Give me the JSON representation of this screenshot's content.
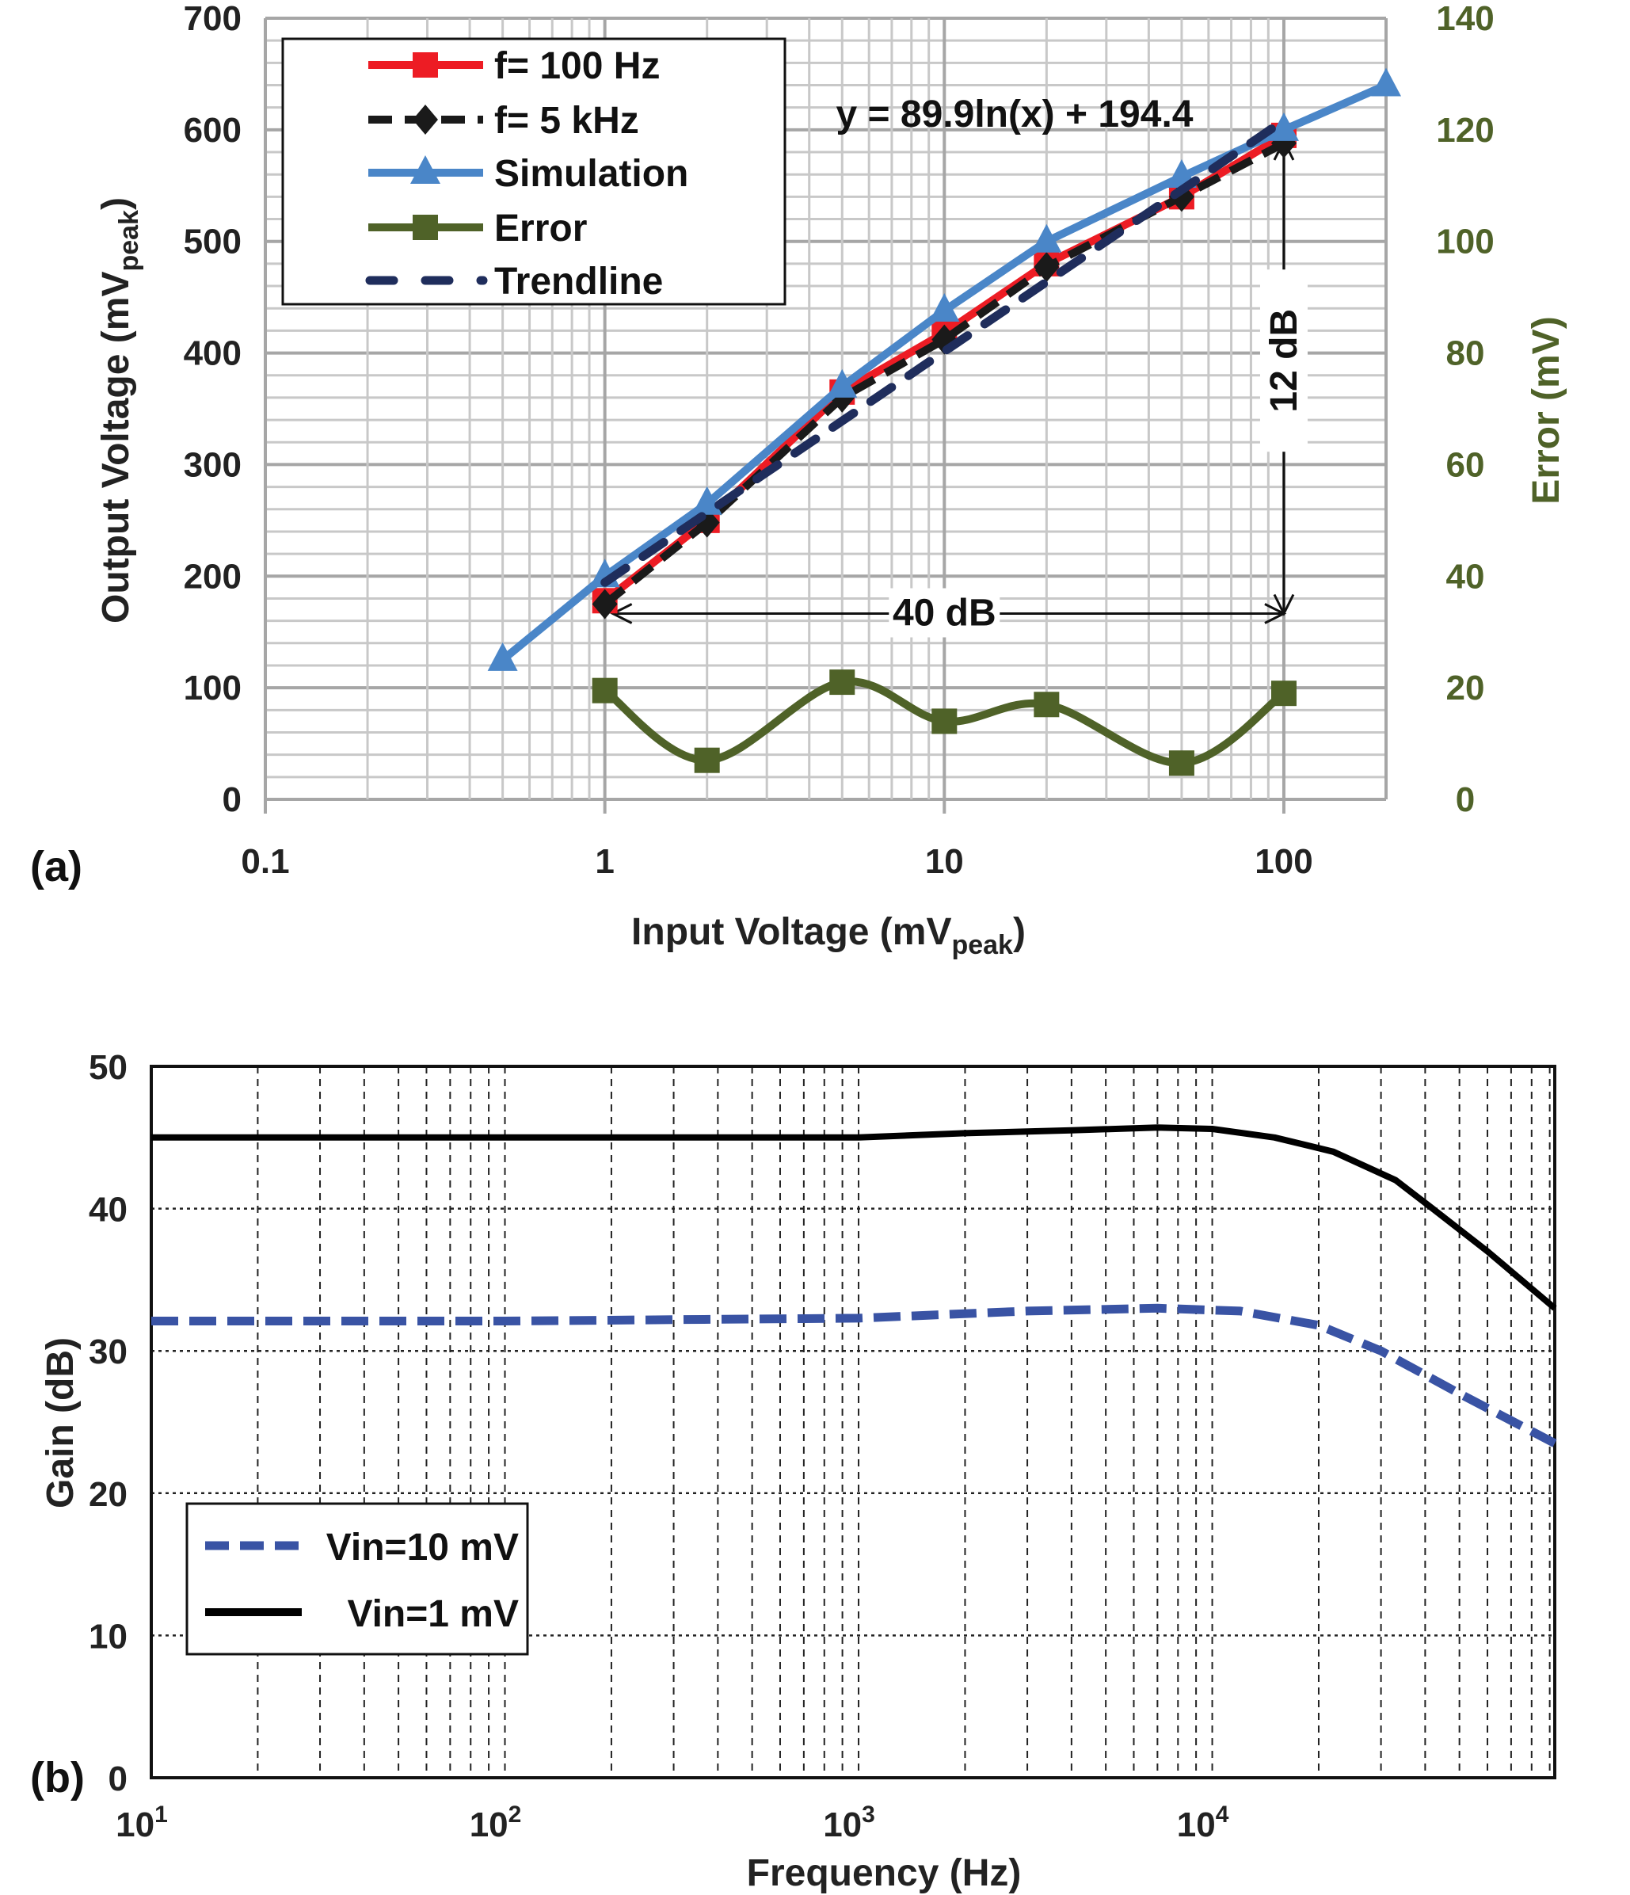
{
  "panel_labels": {
    "a": "(a)",
    "b": "(b)"
  },
  "chart_data": [
    {
      "type": "line",
      "panel": "(a)",
      "xlabel": {
        "main": "Input Voltage (mV",
        "sub": "peak",
        "end": ")"
      },
      "ylabel": {
        "main": "Output Voltage (mV",
        "sub": "peak",
        "end": ")"
      },
      "y2label": "Error (mV)",
      "xscale": "log",
      "xlim": [
        0.1,
        200
      ],
      "ylim": [
        0,
        700
      ],
      "y2lim": [
        0,
        140
      ],
      "xticks": [
        "0.1",
        "1",
        "10",
        "100"
      ],
      "yticks": [
        "0",
        "100",
        "200",
        "300",
        "400",
        "500",
        "600",
        "700"
      ],
      "y2ticks": [
        "0",
        "20",
        "40",
        "60",
        "80",
        "100",
        "120",
        "140"
      ],
      "grid": true,
      "legend_position": "top-left",
      "series": [
        {
          "name": "f= 100 Hz",
          "color": "#ed1c24",
          "marker": "square",
          "axis": "left",
          "x": [
            1,
            2,
            5,
            10,
            20,
            50,
            100
          ],
          "y": [
            178,
            250,
            365,
            418,
            480,
            540,
            595
          ]
        },
        {
          "name": "f= 5 kHz",
          "color": "#1a1a1a",
          "marker": "diamond",
          "dash": "dashed",
          "axis": "left",
          "x": [
            1,
            2,
            5,
            10,
            20,
            50,
            100
          ],
          "y": [
            175,
            248,
            360,
            412,
            477,
            540,
            588
          ]
        },
        {
          "name": "Simulation",
          "color": "#4a86c8",
          "marker": "triangle",
          "axis": "left",
          "x": [
            0.5,
            1,
            2,
            5,
            10,
            20,
            50,
            100,
            200
          ],
          "y": [
            125,
            200,
            265,
            370,
            438,
            500,
            558,
            600,
            640
          ]
        },
        {
          "name": "Error",
          "color": "#4f6228",
          "marker": "square",
          "axis": "right",
          "smooth": true,
          "x": [
            1,
            2,
            5,
            10,
            20,
            50,
            100
          ],
          "y": [
            19.5,
            7,
            21,
            14,
            17,
            6.5,
            19
          ]
        },
        {
          "name": "Trendline",
          "color": "#1f2d5c",
          "dash": "long-dash",
          "axis": "left",
          "formula": {
            "a": 89.9,
            "b": 194.4
          },
          "x_range": [
            1,
            100
          ]
        }
      ],
      "annotations": {
        "equation": "y = 89.9ln(x) + 194.4",
        "horizontal_arrow": {
          "label": "40 dB",
          "x_from": 1,
          "x_to": 100,
          "y": 175
        },
        "vertical_arrow": {
          "label": "12 dB",
          "x": 100,
          "y_from": 175,
          "y_to": 590
        }
      }
    },
    {
      "type": "line",
      "panel": "(b)",
      "xlabel": "Frequency (Hz)",
      "ylabel": "Gain (dB)",
      "xscale": "log",
      "xlim": [
        10,
        93000
      ],
      "ylim": [
        0,
        50
      ],
      "xticks": [
        {
          "base": "10",
          "exp": "1"
        },
        {
          "base": "10",
          "exp": "2"
        },
        {
          "base": "10",
          "exp": "3"
        },
        {
          "base": "10",
          "exp": "4"
        }
      ],
      "yticks": [
        "0",
        "10",
        "20",
        "30",
        "40",
        "50"
      ],
      "grid": true,
      "legend_position": "bottom-left",
      "series": [
        {
          "name": "Vin=10 mV",
          "color": "#3953a4",
          "dash": "dashed",
          "x": [
            10,
            100,
            1000,
            3000,
            7000,
            12000,
            20000,
            30000,
            50000,
            93000
          ],
          "y": [
            32.1,
            32.1,
            32.3,
            32.8,
            33.0,
            32.8,
            31.8,
            30.0,
            27.0,
            23.5
          ]
        },
        {
          "name": "Vin=1 mV",
          "color": "#000000",
          "dash": "solid",
          "x": [
            10,
            100,
            1000,
            2000,
            4000,
            7000,
            10000,
            15000,
            22000,
            33000,
            42000,
            60000,
            93000
          ],
          "y": [
            45.0,
            45.0,
            45.0,
            45.3,
            45.5,
            45.7,
            45.6,
            45.0,
            44.0,
            42.0,
            40.0,
            37.0,
            33.0
          ]
        }
      ]
    }
  ]
}
